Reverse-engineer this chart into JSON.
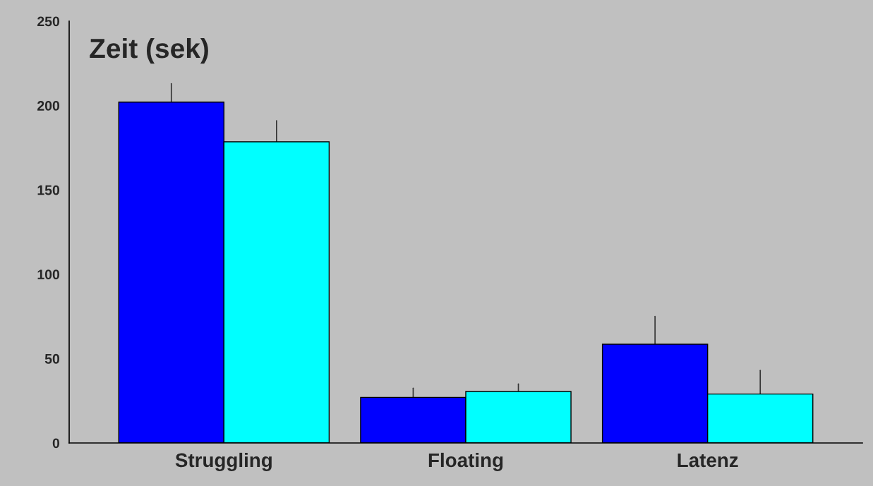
{
  "chart_data": {
    "type": "bar",
    "title": "Zeit (sek)",
    "categories": [
      "Struggling",
      "Floating",
      "Latenz"
    ],
    "series": [
      {
        "color": "#0000ff",
        "values": [
          202,
          27,
          58.5
        ],
        "errors": [
          [
            202,
            213
          ],
          [
            27,
            32.5
          ],
          [
            58.5,
            75
          ]
        ]
      },
      {
        "color": "#00ffff",
        "values": [
          178.5,
          30.5,
          29
        ],
        "errors": [
          [
            178.5,
            191
          ],
          [
            30.5,
            35
          ],
          [
            29,
            43
          ]
        ]
      }
    ],
    "ylim": [
      0,
      250
    ],
    "yticks": [
      0,
      50,
      100,
      150,
      200,
      250
    ],
    "grid": false,
    "legend": false
  }
}
